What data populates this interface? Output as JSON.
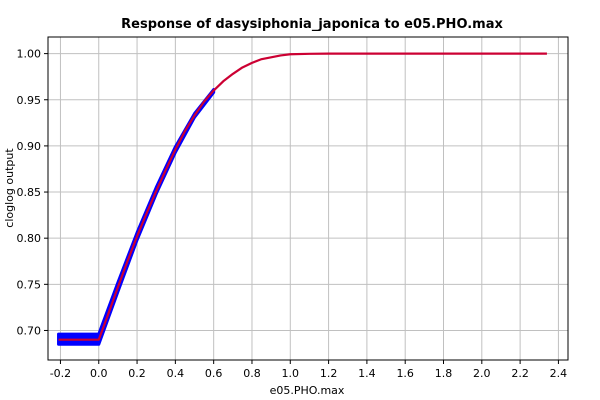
{
  "chart_data": {
    "type": "line",
    "title": "Response of dasysiphonia_japonica to e05.PHO.max",
    "xlabel": "e05.PHO.max",
    "ylabel": "cloglog output",
    "xlim": [
      -0.265,
      2.45
    ],
    "ylim": [
      0.668,
      1.018
    ],
    "x_ticks": [
      -0.2,
      0.0,
      0.2,
      0.4,
      0.6,
      0.8,
      1.0,
      1.2,
      1.4,
      1.6,
      1.8,
      2.0,
      2.2,
      2.4
    ],
    "y_ticks": [
      0.7,
      0.75,
      0.8,
      0.85,
      0.9,
      0.95,
      1.0
    ],
    "grid": true,
    "series": [
      {
        "role": "variability-band",
        "color": "#0000ff",
        "lower": [
          {
            "x": -0.21,
            "y": 0.685
          },
          {
            "x": 0.0,
            "y": 0.685
          },
          {
            "x": 0.1,
            "y": 0.742
          },
          {
            "x": 0.2,
            "y": 0.798
          },
          {
            "x": 0.3,
            "y": 0.848
          },
          {
            "x": 0.4,
            "y": 0.893
          },
          {
            "x": 0.5,
            "y": 0.931
          },
          {
            "x": 0.6,
            "y": 0.958
          }
        ],
        "upper": [
          {
            "x": -0.21,
            "y": 0.696
          },
          {
            "x": 0.0,
            "y": 0.696
          },
          {
            "x": 0.1,
            "y": 0.752
          },
          {
            "x": 0.2,
            "y": 0.806
          },
          {
            "x": 0.3,
            "y": 0.855
          },
          {
            "x": 0.4,
            "y": 0.899
          },
          {
            "x": 0.5,
            "y": 0.935
          },
          {
            "x": 0.6,
            "y": 0.961
          }
        ]
      },
      {
        "role": "mean-response",
        "color": "#cc0033",
        "points": [
          {
            "x": -0.21,
            "y": 0.69
          },
          {
            "x": 0.0,
            "y": 0.69
          },
          {
            "x": 0.05,
            "y": 0.718
          },
          {
            "x": 0.1,
            "y": 0.747
          },
          {
            "x": 0.15,
            "y": 0.775
          },
          {
            "x": 0.2,
            "y": 0.802
          },
          {
            "x": 0.25,
            "y": 0.827
          },
          {
            "x": 0.3,
            "y": 0.851
          },
          {
            "x": 0.35,
            "y": 0.874
          },
          {
            "x": 0.4,
            "y": 0.896
          },
          {
            "x": 0.45,
            "y": 0.916
          },
          {
            "x": 0.5,
            "y": 0.933
          },
          {
            "x": 0.55,
            "y": 0.948
          },
          {
            "x": 0.6,
            "y": 0.96
          },
          {
            "x": 0.65,
            "y": 0.97
          },
          {
            "x": 0.7,
            "y": 0.978
          },
          {
            "x": 0.75,
            "y": 0.985
          },
          {
            "x": 0.8,
            "y": 0.99
          },
          {
            "x": 0.85,
            "y": 0.994
          },
          {
            "x": 0.9,
            "y": 0.996
          },
          {
            "x": 0.95,
            "y": 0.998
          },
          {
            "x": 1.0,
            "y": 0.9993
          },
          {
            "x": 1.1,
            "y": 0.9998
          },
          {
            "x": 1.2,
            "y": 1.0
          },
          {
            "x": 1.5,
            "y": 1.0
          },
          {
            "x": 2.0,
            "y": 1.0
          },
          {
            "x": 2.34,
            "y": 1.0
          }
        ]
      }
    ]
  }
}
